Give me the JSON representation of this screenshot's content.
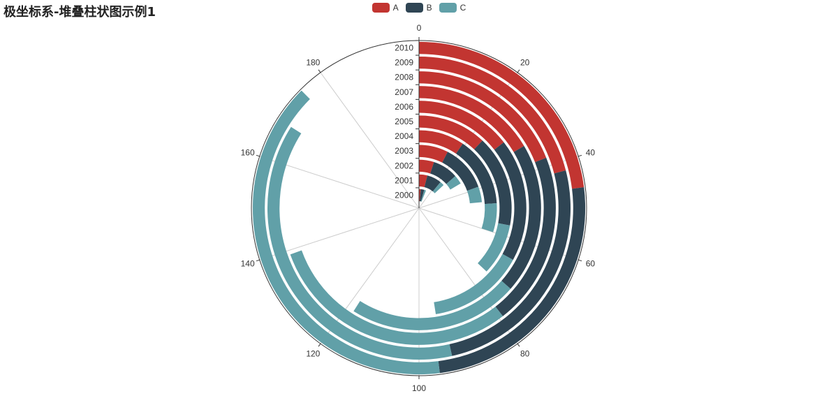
{
  "chart_data": {
    "type": "bar",
    "title": "极坐标系-堆叠柱状图示例1",
    "coordinate": "polar",
    "stacked": true,
    "categories": [
      "2000",
      "2001",
      "2002",
      "2003",
      "2004",
      "2005",
      "2006",
      "2007",
      "2008",
      "2009",
      "2010"
    ],
    "angle_ticks": [
      0,
      20,
      40,
      60,
      80,
      100,
      120,
      140,
      160,
      180
    ],
    "angle_max": 200,
    "legend_position": "top",
    "grid": true,
    "series": [
      {
        "name": "A",
        "color": "#c23531",
        "values": [
          3,
          8,
          10,
          15,
          19,
          24,
          29,
          33,
          38,
          42,
          46
        ]
      },
      {
        "name": "B",
        "color": "#2f4554",
        "values": [
          6,
          14,
          17,
          24,
          29,
          32,
          37,
          40,
          41,
          51,
          50
        ]
      },
      {
        "name": "C",
        "color": "#61a0a8",
        "values": [
          3,
          4,
          6,
          8,
          12,
          18,
          29,
          45,
          60,
          75,
          79
        ]
      }
    ]
  }
}
